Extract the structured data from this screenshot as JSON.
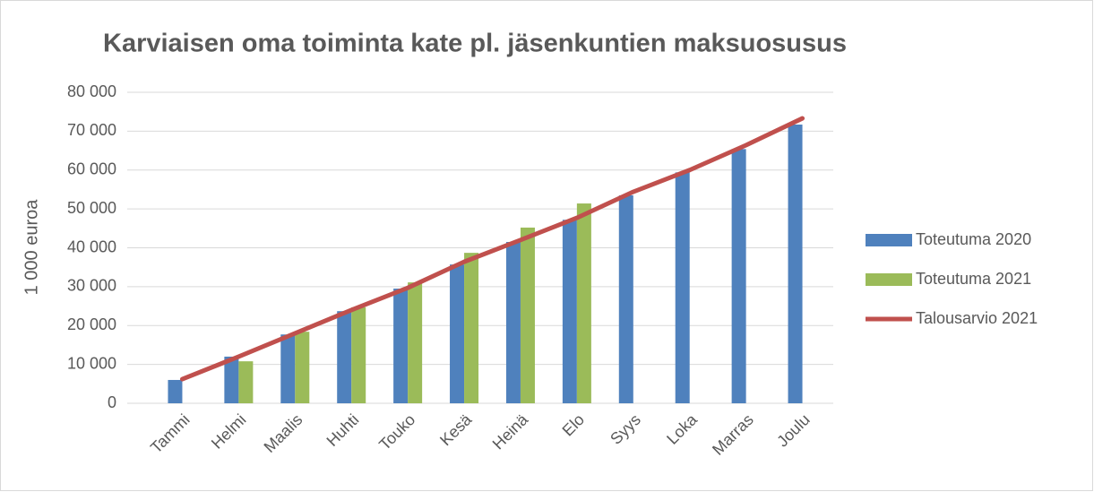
{
  "chart_data": {
    "type": "bar",
    "title": "Karviaisen oma toiminta kate pl. jäsenkuntien maksuosusus",
    "y_label": "1 000 euroa",
    "categories": [
      "Tammi",
      "Helmi",
      "Maalis",
      "Huhti",
      "Touko",
      "Kesä",
      "Heinä",
      "Elo",
      "Syys",
      "Loka",
      "Marras",
      "Joulu"
    ],
    "series": [
      {
        "name": "Toteutuma 2020",
        "type": "bar",
        "color": "#4f81bd",
        "values": [
          6000,
          12000,
          17700,
          23700,
          29500,
          35700,
          41500,
          47200,
          53500,
          59400,
          65400,
          71700
        ]
      },
      {
        "name": "Toteutuma 2021",
        "type": "bar",
        "color": "#9bbb59",
        "values": [
          null,
          10800,
          18400,
          24700,
          31100,
          38700,
          45200,
          51400,
          null,
          null,
          null,
          null
        ]
      },
      {
        "name": "Talousarvio 2021",
        "type": "line",
        "color": "#c0504d",
        "values": [
          6200,
          12000,
          18000,
          24000,
          29700,
          36400,
          42000,
          47700,
          54400,
          60000,
          66400,
          73300
        ]
      }
    ],
    "ylim": [
      0,
      80000
    ],
    "yticks": [
      0,
      {
        "value": 10000,
        "label": "10 000"
      },
      {
        "value": 20000,
        "label": "20 000"
      },
      {
        "value": 30000,
        "label": "30 000"
      },
      {
        "value": 40000,
        "label": "40 000"
      },
      {
        "value": 50000,
        "label": "50 000"
      },
      {
        "value": 60000,
        "label": "60 000"
      },
      {
        "value": 70000,
        "label": "70 000"
      },
      {
        "value": 80000,
        "label": "80 000"
      }
    ],
    "grid": true,
    "legend": "right"
  }
}
